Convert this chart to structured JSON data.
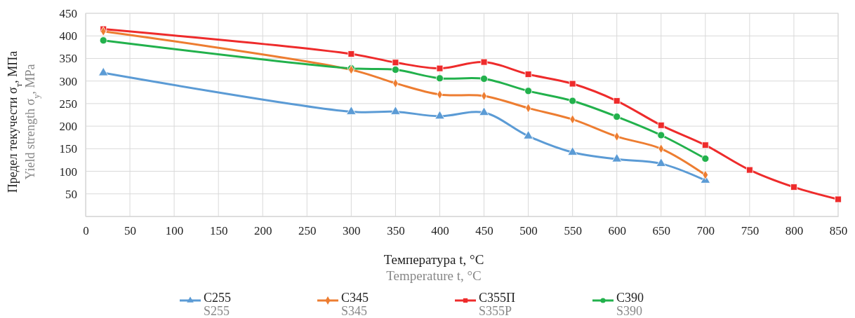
{
  "chart_data": {
    "type": "line",
    "xlabel": "Температура t, °C\nTemperature t, °C",
    "ylabel": "Предел текучести σ$_{т}$, МПа\nYield strength σ$_{y}$, MPa",
    "xlim": [
      0,
      850
    ],
    "xticks": [
      0,
      50,
      100,
      150,
      200,
      250,
      300,
      350,
      400,
      450,
      500,
      550,
      600,
      650,
      700,
      750,
      800,
      850
    ],
    "ylim": [
      0,
      450
    ],
    "yticks": [
      {
        "value": 0,
        "label": null
      },
      50,
      100,
      150,
      200,
      250,
      300,
      350,
      400,
      450
    ],
    "grid": true,
    "legend": "bottom",
    "line_style": "solid",
    "series": [
      {
        "name": "С255\nS255",
        "color": "#5b9bd5",
        "marker": "triangle",
        "x": [
          20,
          300,
          350,
          400,
          450,
          500,
          550,
          600,
          650,
          700
        ],
        "values": [
          318,
          232,
          232,
          222,
          230,
          178,
          142,
          127,
          117,
          80
        ]
      },
      {
        "name": "С345\nS345",
        "color": "#ed7d31",
        "marker": "diamond",
        "x": [
          20,
          300,
          350,
          400,
          450,
          500,
          550,
          600,
          650,
          700
        ],
        "values": [
          410,
          325,
          295,
          270,
          267,
          240,
          215,
          177,
          150,
          92
        ]
      },
      {
        "name": "С355П\nS355P",
        "color": "#ee2b2b",
        "marker": "square",
        "x": [
          20,
          300,
          350,
          400,
          450,
          500,
          550,
          600,
          650,
          700,
          750,
          800,
          850
        ],
        "values": [
          415,
          360,
          341,
          328,
          342,
          315,
          294,
          256,
          202,
          158,
          103,
          65,
          38
        ]
      },
      {
        "name": "С390\nS390",
        "color": "#22b14c",
        "marker": "circle",
        "x": [
          20,
          300,
          350,
          400,
          450,
          500,
          550,
          600,
          650,
          700
        ],
        "values": [
          390,
          328,
          325,
          306,
          305,
          278,
          256,
          221,
          180,
          128
        ]
      }
    ]
  }
}
